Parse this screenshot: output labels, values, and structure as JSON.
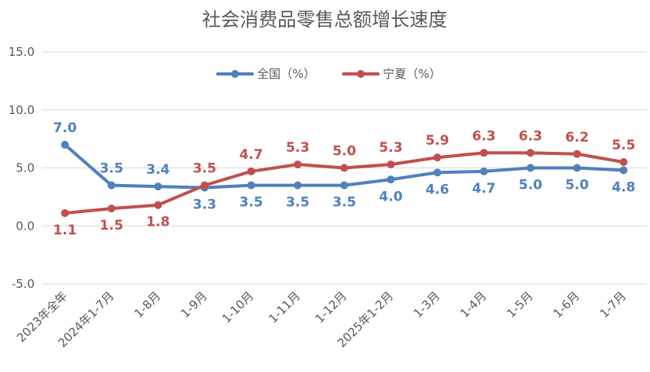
{
  "chart_data": {
    "type": "line",
    "title": "社会消费品零售总额增长速度",
    "categories": [
      "2023年全年",
      "2024年1-7月",
      "1-8月",
      "1-9月",
      "1-10月",
      "1-11月",
      "1-12月",
      "2025年1-2月",
      "1-3月",
      "1-4月",
      "1-5月",
      "1-6月",
      "1-7月"
    ],
    "ylim": [
      -5.0,
      15.0
    ],
    "yticks": [
      "15.0",
      "10.0",
      "5.0",
      "0.0",
      "-5.0"
    ],
    "grid": true,
    "legend_position": "top-center",
    "series": [
      {
        "name": "全国（%）",
        "color": "#4F81BD",
        "values": [
          7.0,
          3.5,
          3.4,
          3.3,
          3.5,
          3.5,
          3.5,
          4.0,
          4.6,
          4.7,
          5.0,
          5.0,
          4.8
        ],
        "labels": [
          "7.0",
          "3.5",
          "3.4",
          "3.3",
          "3.5",
          "3.5",
          "3.5",
          "4.0",
          "4.6",
          "4.7",
          "5.0",
          "5.0",
          "4.8"
        ]
      },
      {
        "name": "宁夏（%）",
        "color": "#C0504D",
        "values": [
          1.1,
          1.5,
          1.8,
          3.5,
          4.7,
          5.3,
          5.0,
          5.3,
          5.9,
          6.3,
          6.3,
          6.2,
          5.5
        ],
        "labels": [
          "1.1",
          "1.5",
          "1.8",
          "3.5",
          "4.7",
          "5.3",
          "5.0",
          "5.3",
          "5.9",
          "6.3",
          "6.3",
          "6.2",
          "5.5"
        ]
      }
    ]
  }
}
